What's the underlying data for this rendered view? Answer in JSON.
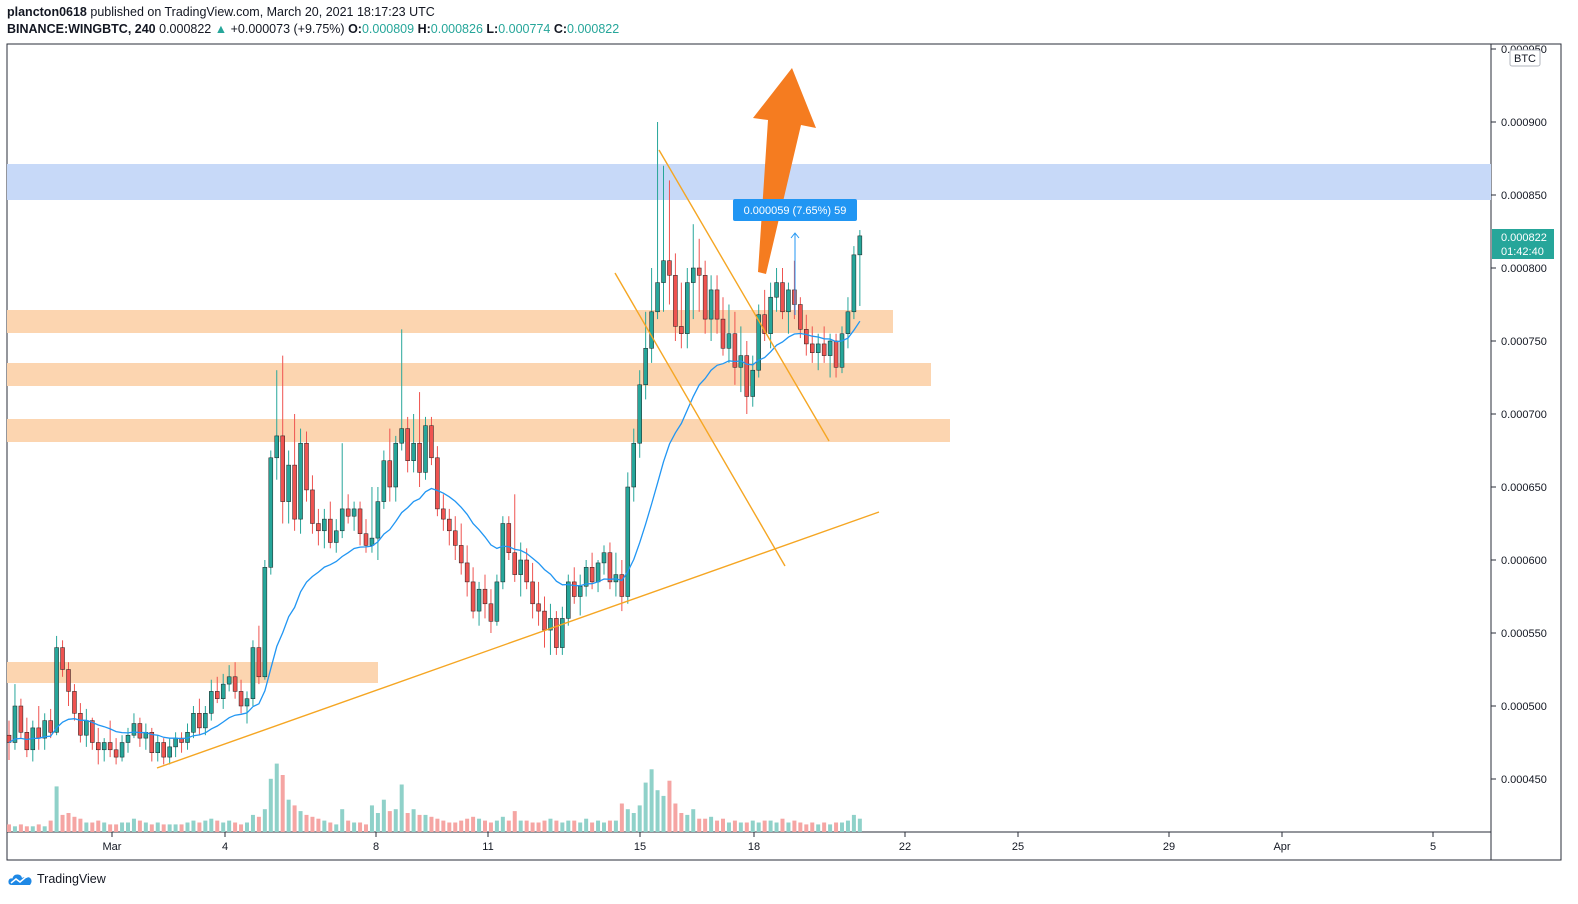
{
  "header": {
    "publisher": "plancton0618",
    "published_text": "published on TradingView.com, March 20, 2021 18:17:23 UTC",
    "symbol": "BINANCE:WINGBTC, 240",
    "last": "0.000822",
    "change": "+0.000073 (+9.75%)",
    "o_label": "O:",
    "o": "0.000809",
    "h_label": "H:",
    "h": "0.000826",
    "l_label": "L:",
    "l": "0.000774",
    "c_label": "C:",
    "c": "0.000822"
  },
  "footer": {
    "brand": "TradingView"
  },
  "price_axis": {
    "currency": "BTC",
    "ticks": [
      "0.000950",
      "0.000900",
      "0.000850",
      "0.000800",
      "0.000750",
      "0.000700",
      "0.000650",
      "0.000600",
      "0.000550",
      "0.000500",
      "0.000450"
    ],
    "last_price_label": "0.000822",
    "countdown": "01:42:40"
  },
  "time_axis": {
    "ticks": [
      "Mar",
      "4",
      "8",
      "11",
      "15",
      "18",
      "22",
      "25",
      "29",
      "Apr",
      "5"
    ]
  },
  "measure_label": "0.000059 (7.65%) 59",
  "colors": {
    "up": "#26a69a",
    "down": "#ef5350",
    "ma": "#2196f3",
    "trendline": "#f5a623",
    "zone_orange": "#fcd5b0",
    "zone_blue": "#c7d9f8",
    "arrow": "#f57c20",
    "last_price": "#26a69a"
  },
  "chart_data": {
    "type": "candlestick",
    "timeframe": "240",
    "ylim": [
      0.00043,
      0.00095
    ],
    "candles": [
      [
        0.00048,
        0.00049,
        0.000463,
        0.000475
      ],
      [
        0.000475,
        0.000515,
        0.00047,
        0.0005
      ],
      [
        0.0005,
        0.000505,
        0.000478,
        0.000482
      ],
      [
        0.000482,
        0.000492,
        0.000465,
        0.00047
      ],
      [
        0.00047,
        0.00049,
        0.000462,
        0.000485
      ],
      [
        0.000485,
        0.0005,
        0.00047,
        0.000478
      ],
      [
        0.000478,
        0.000495,
        0.00047,
        0.00049
      ],
      [
        0.00049,
        0.000498,
        0.000478,
        0.000482
      ],
      [
        0.000482,
        0.000548,
        0.00048,
        0.00054
      ],
      [
        0.00054,
        0.000545,
        0.00052,
        0.000525
      ],
      [
        0.000525,
        0.00053,
        0.0005,
        0.00051
      ],
      [
        0.00051,
        0.000515,
        0.00049,
        0.000495
      ],
      [
        0.000495,
        0.000502,
        0.000475,
        0.00048
      ],
      [
        0.00048,
        0.000498,
        0.000472,
        0.00049
      ],
      [
        0.00049,
        0.000492,
        0.00047,
        0.000475
      ],
      [
        0.000475,
        0.000485,
        0.00046,
        0.00047
      ],
      [
        0.00047,
        0.000478,
        0.000462,
        0.000475
      ],
      [
        0.000475,
        0.00049,
        0.000465,
        0.00047
      ],
      [
        0.00047,
        0.000478,
        0.00046,
        0.000465
      ],
      [
        0.000465,
        0.00048,
        0.000462,
        0.000475
      ],
      [
        0.000475,
        0.000485,
        0.000468,
        0.00048
      ],
      [
        0.00048,
        0.000495,
        0.000478,
        0.000488
      ],
      [
        0.000488,
        0.000492,
        0.000472,
        0.000478
      ],
      [
        0.000478,
        0.000488,
        0.00047,
        0.000482
      ],
      [
        0.000482,
        0.000485,
        0.000462,
        0.000468
      ],
      [
        0.000468,
        0.00048,
        0.000462,
        0.000475
      ],
      [
        0.000475,
        0.000478,
        0.00046,
        0.000465
      ],
      [
        0.000465,
        0.000478,
        0.00046,
        0.000472
      ],
      [
        0.000472,
        0.000482,
        0.000465,
        0.000478
      ],
      [
        0.000478,
        0.000482,
        0.000468,
        0.000475
      ],
      [
        0.000475,
        0.000488,
        0.00047,
        0.000482
      ],
      [
        0.000482,
        0.0005,
        0.000478,
        0.000495
      ],
      [
        0.000495,
        0.000505,
        0.00048,
        0.000485
      ],
      [
        0.000485,
        0.0005,
        0.00048,
        0.000495
      ],
      [
        0.000495,
        0.000518,
        0.00049,
        0.00051
      ],
      [
        0.00051,
        0.00052,
        0.000502,
        0.000505
      ],
      [
        0.000505,
        0.000522,
        0.000498,
        0.000515
      ],
      [
        0.000515,
        0.000528,
        0.00051,
        0.00052
      ],
      [
        0.00052,
        0.00053,
        0.000505,
        0.00051
      ],
      [
        0.00051,
        0.000518,
        0.000495,
        0.0005
      ],
      [
        0.0005,
        0.00051,
        0.000488,
        0.000505
      ],
      [
        0.000505,
        0.000545,
        0.0005,
        0.00054
      ],
      [
        0.00054,
        0.000555,
        0.000515,
        0.00052
      ],
      [
        0.00052,
        0.0006,
        0.000518,
        0.000595
      ],
      [
        0.000595,
        0.000675,
        0.00059,
        0.00067
      ],
      [
        0.00067,
        0.00073,
        0.000655,
        0.000685
      ],
      [
        0.000685,
        0.00074,
        0.000625,
        0.00064
      ],
      [
        0.00064,
        0.000675,
        0.000625,
        0.000665
      ],
      [
        0.000665,
        0.0007,
        0.00062,
        0.000628
      ],
      [
        0.000628,
        0.00069,
        0.000618,
        0.00068
      ],
      [
        0.00068,
        0.000688,
        0.00064,
        0.000648
      ],
      [
        0.000648,
        0.000658,
        0.000618,
        0.000625
      ],
      [
        0.000625,
        0.000635,
        0.00061,
        0.00062
      ],
      [
        0.00062,
        0.000635,
        0.000608,
        0.000628
      ],
      [
        0.000628,
        0.00064,
        0.000608,
        0.000612
      ],
      [
        0.000612,
        0.000628,
        0.000605,
        0.00062
      ],
      [
        0.00062,
        0.00068,
        0.000615,
        0.000635
      ],
      [
        0.000635,
        0.000645,
        0.000625,
        0.00063
      ],
      [
        0.00063,
        0.00064,
        0.00062,
        0.000635
      ],
      [
        0.000635,
        0.00064,
        0.00061,
        0.000618
      ],
      [
        0.000618,
        0.000628,
        0.000605,
        0.00061
      ],
      [
        0.00061,
        0.00065,
        0.000605,
        0.000615
      ],
      [
        0.000615,
        0.00065,
        0.0006,
        0.00064
      ],
      [
        0.00064,
        0.000675,
        0.000635,
        0.000668
      ],
      [
        0.000668,
        0.00069,
        0.00064,
        0.00065
      ],
      [
        0.00065,
        0.000685,
        0.00064,
        0.00068
      ],
      [
        0.00068,
        0.000758,
        0.000675,
        0.00069
      ],
      [
        0.00069,
        0.000698,
        0.00066,
        0.000668
      ],
      [
        0.000668,
        0.0007,
        0.00066,
        0.00068
      ],
      [
        0.00068,
        0.000715,
        0.00065,
        0.00066
      ],
      [
        0.00066,
        0.000698,
        0.000655,
        0.000692
      ],
      [
        0.000692,
        0.000698,
        0.000665,
        0.00067
      ],
      [
        0.00067,
        0.000678,
        0.00063,
        0.000635
      ],
      [
        0.000635,
        0.000645,
        0.00062,
        0.000628
      ],
      [
        0.000628,
        0.000635,
        0.00061,
        0.00062
      ],
      [
        0.00062,
        0.00063,
        0.0006,
        0.00061
      ],
      [
        0.00061,
        0.000625,
        0.00059,
        0.000598
      ],
      [
        0.000598,
        0.00061,
        0.000575,
        0.000585
      ],
      [
        0.000585,
        0.000595,
        0.00056,
        0.000565
      ],
      [
        0.000565,
        0.000585,
        0.000555,
        0.00058
      ],
      [
        0.00058,
        0.00059,
        0.00056,
        0.00057
      ],
      [
        0.00057,
        0.00058,
        0.00055,
        0.000558
      ],
      [
        0.000558,
        0.00059,
        0.000555,
        0.000585
      ],
      [
        0.000585,
        0.00063,
        0.00058,
        0.000625
      ],
      [
        0.000625,
        0.00063,
        0.0006,
        0.000605
      ],
      [
        0.000605,
        0.000645,
        0.000585,
        0.00059
      ],
      [
        0.00059,
        0.000612,
        0.000575,
        0.0006
      ],
      [
        0.0006,
        0.000608,
        0.00058,
        0.000585
      ],
      [
        0.000585,
        0.000598,
        0.00056,
        0.00057
      ],
      [
        0.00057,
        0.000585,
        0.000555,
        0.000565
      ],
      [
        0.000565,
        0.000575,
        0.00054,
        0.000552
      ],
      [
        0.000552,
        0.00057,
        0.000535,
        0.00056
      ],
      [
        0.00056,
        0.000565,
        0.000535,
        0.00054
      ],
      [
        0.00054,
        0.000568,
        0.000535,
        0.00056
      ],
      [
        0.00056,
        0.00059,
        0.000555,
        0.000585
      ],
      [
        0.000585,
        0.000595,
        0.00057,
        0.000575
      ],
      [
        0.000575,
        0.00059,
        0.000562,
        0.000582
      ],
      [
        0.000582,
        0.0006,
        0.000575,
        0.000595
      ],
      [
        0.000595,
        0.000605,
        0.00058,
        0.000585
      ],
      [
        0.000585,
        0.0006,
        0.000578,
        0.000598
      ],
      [
        0.000598,
        0.00061,
        0.00059,
        0.000605
      ],
      [
        0.000605,
        0.000612,
        0.00058,
        0.000585
      ],
      [
        0.000585,
        0.000605,
        0.000575,
        0.00059
      ],
      [
        0.00059,
        0.0006,
        0.000565,
        0.000575
      ],
      [
        0.000575,
        0.00066,
        0.00057,
        0.00065
      ],
      [
        0.00065,
        0.00069,
        0.00064,
        0.00068
      ],
      [
        0.00068,
        0.00073,
        0.00067,
        0.00072
      ],
      [
        0.00072,
        0.00077,
        0.00071,
        0.000745
      ],
      [
        0.000745,
        0.0008,
        0.000735,
        0.00077
      ],
      [
        0.00077,
        0.0009,
        0.000765,
        0.00079
      ],
      [
        0.00079,
        0.00087,
        0.00077,
        0.000805
      ],
      [
        0.000805,
        0.00086,
        0.000775,
        0.000795
      ],
      [
        0.000795,
        0.00081,
        0.00075,
        0.00076
      ],
      [
        0.00076,
        0.00079,
        0.000745,
        0.000755
      ],
      [
        0.000755,
        0.0008,
        0.000745,
        0.00079
      ],
      [
        0.00079,
        0.00083,
        0.000765,
        0.0008
      ],
      [
        0.0008,
        0.00082,
        0.00077,
        0.000795
      ],
      [
        0.000795,
        0.000805,
        0.000755,
        0.000765
      ],
      [
        0.000765,
        0.000795,
        0.00075,
        0.000785
      ],
      [
        0.000785,
        0.000795,
        0.000755,
        0.000765
      ],
      [
        0.000765,
        0.00078,
        0.00074,
        0.000745
      ],
      [
        0.000745,
        0.000775,
        0.000735,
        0.000755
      ],
      [
        0.000755,
        0.00077,
        0.00072,
        0.000732
      ],
      [
        0.000732,
        0.00076,
        0.000715,
        0.00074
      ],
      [
        0.00074,
        0.00075,
        0.0007,
        0.000712
      ],
      [
        0.000712,
        0.00074,
        0.000705,
        0.00073
      ],
      [
        0.00073,
        0.000775,
        0.000725,
        0.000768
      ],
      [
        0.000768,
        0.000785,
        0.00075,
        0.000755
      ],
      [
        0.000755,
        0.00079,
        0.000745,
        0.00078
      ],
      [
        0.00078,
        0.0008,
        0.00077,
        0.00079
      ],
      [
        0.00079,
        0.0008,
        0.000765,
        0.00077
      ],
      [
        0.00077,
        0.00079,
        0.000755,
        0.000785
      ],
      [
        0.000785,
        0.000805,
        0.000765,
        0.000775
      ],
      [
        0.000775,
        0.00078,
        0.000752,
        0.000758
      ],
      [
        0.000758,
        0.000768,
        0.00074,
        0.000748
      ],
      [
        0.000748,
        0.00076,
        0.000735,
        0.000742
      ],
      [
        0.000742,
        0.000755,
        0.00073,
        0.000748
      ],
      [
        0.000748,
        0.00076,
        0.000735,
        0.00074
      ],
      [
        0.00074,
        0.000755,
        0.000725,
        0.00075
      ],
      [
        0.00075,
        0.000755,
        0.000725,
        0.000732
      ],
      [
        0.000732,
        0.00076,
        0.000728,
        0.000755
      ],
      [
        0.000755,
        0.00078,
        0.000745,
        0.00077
      ],
      [
        0.00077,
        0.000815,
        0.000765,
        0.000809
      ],
      [
        0.000809,
        0.000826,
        0.000774,
        0.000822
      ]
    ],
    "volume": [
      4,
      3,
      4,
      3,
      3,
      4,
      3,
      6,
      24,
      9,
      10,
      8,
      7,
      5,
      5,
      6,
      5,
      4,
      4,
      5,
      5,
      7,
      6,
      5,
      4,
      5,
      4,
      4,
      4,
      4,
      5,
      6,
      5,
      6,
      7,
      6,
      5,
      6,
      5,
      4,
      5,
      9,
      8,
      12,
      28,
      36,
      30,
      17,
      14,
      11,
      9,
      8,
      7,
      6,
      5,
      4,
      12,
      6,
      5,
      5,
      4,
      14,
      10,
      17,
      11,
      12,
      25,
      10,
      12,
      9,
      9,
      8,
      7,
      6,
      5,
      5,
      6,
      7,
      8,
      7,
      6,
      5,
      6,
      8,
      6,
      11,
      6,
      6,
      5,
      5,
      6,
      7,
      6,
      5,
      6,
      6,
      5,
      7,
      5,
      6,
      5,
      6,
      6,
      15,
      12,
      10,
      14,
      26,
      33,
      22,
      19,
      27,
      15,
      10,
      9,
      12,
      7,
      7,
      8,
      6,
      7,
      5,
      6,
      5,
      5,
      6,
      5,
      6,
      6,
      5,
      7,
      5,
      6,
      5,
      4,
      5,
      4,
      5,
      4,
      5,
      5,
      6,
      9,
      7
    ]
  }
}
